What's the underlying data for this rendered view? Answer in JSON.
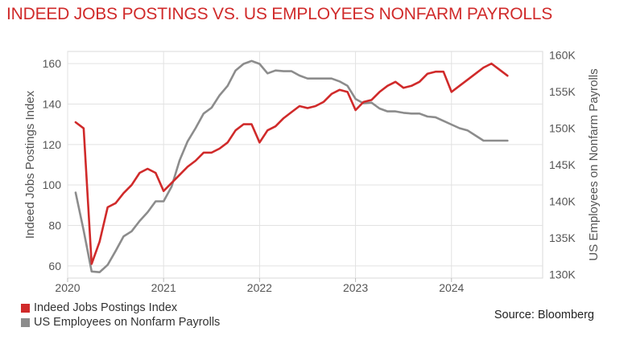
{
  "title": "INDEED JOBS POSTINGS VS. US EMPLOYEES NONFARM PAYROLLS",
  "source": "Source: Bloomberg",
  "chart_data": {
    "type": "line",
    "title": "INDEED JOBS POSTINGS VS. US EMPLOYEES NONFARM PAYROLLS",
    "xlabel": "",
    "ylabel_left": "Indeed Jobs Postings Index",
    "ylabel_right": "US Employees on Nonfarm Payrolls",
    "x_ticks": [
      "2020",
      "2021",
      "2022",
      "2023",
      "2024"
    ],
    "x_range": [
      2020.0,
      2024.95
    ],
    "y_left": {
      "range": [
        54,
        166
      ],
      "ticks": [
        60,
        80,
        100,
        120,
        140,
        160
      ]
    },
    "y_right": {
      "range": [
        129500,
        160500
      ],
      "ticks": [
        130000,
        135000,
        140000,
        145000,
        150000,
        155000,
        160000
      ],
      "tick_labels": [
        "130K",
        "135K",
        "140K",
        "145K",
        "150K",
        "155K",
        "160K"
      ]
    },
    "grid": true,
    "legend_position": "bottom-left",
    "series": [
      {
        "name": "Indeed Jobs Postings Index",
        "axis": "left",
        "color": "#d02a2a",
        "x": [
          "2020-02",
          "2020-03",
          "2020-04",
          "2020-05",
          "2020-06",
          "2020-07",
          "2020-08",
          "2020-09",
          "2020-10",
          "2020-11",
          "2020-12",
          "2021-01",
          "2021-02",
          "2021-03",
          "2021-04",
          "2021-05",
          "2021-06",
          "2021-07",
          "2021-08",
          "2021-09",
          "2021-10",
          "2021-11",
          "2021-12",
          "2022-01",
          "2022-02",
          "2022-03",
          "2022-04",
          "2022-05",
          "2022-06",
          "2022-07",
          "2022-08",
          "2022-09",
          "2022-10",
          "2022-11",
          "2022-12",
          "2023-01",
          "2023-02",
          "2023-03",
          "2023-04",
          "2023-05",
          "2023-06",
          "2023-07",
          "2023-08",
          "2023-09",
          "2023-10",
          "2023-11",
          "2023-12",
          "2024-01",
          "2024-02",
          "2024-03",
          "2024-04",
          "2024-05",
          "2024-06",
          "2024-07",
          "2024-08"
        ],
        "values": [
          131,
          128,
          61,
          72,
          89,
          91,
          96,
          100,
          106,
          108,
          106,
          97,
          101,
          105,
          109,
          112,
          116,
          116,
          118,
          121,
          127,
          130,
          130,
          121,
          127,
          129,
          133,
          136,
          139,
          138,
          139,
          141,
          145,
          147,
          146,
          137,
          141,
          142,
          146,
          149,
          151,
          148,
          149,
          151,
          155,
          156,
          156,
          146,
          149,
          152,
          155,
          158,
          160,
          157,
          154
        ]
      },
      {
        "name": "US Employees on Nonfarm Payrolls",
        "axis": "right",
        "color": "#8c8c8c",
        "x": [
          "2020-02",
          "2020-03",
          "2020-04",
          "2020-05",
          "2020-06",
          "2020-07",
          "2020-08",
          "2020-09",
          "2020-10",
          "2020-11",
          "2020-12",
          "2021-01",
          "2021-02",
          "2021-03",
          "2021-04",
          "2021-05",
          "2021-06",
          "2021-07",
          "2021-08",
          "2021-09",
          "2021-10",
          "2021-11",
          "2021-12",
          "2022-01",
          "2022-02",
          "2022-03",
          "2022-04",
          "2022-05",
          "2022-06",
          "2022-07",
          "2022-08",
          "2022-09",
          "2022-10",
          "2022-11",
          "2022-12",
          "2023-01",
          "2023-02",
          "2023-03",
          "2023-04",
          "2023-05",
          "2023-06",
          "2023-07",
          "2023-08",
          "2023-09",
          "2023-10",
          "2023-11",
          "2023-12",
          "2024-01",
          "2024-02",
          "2024-03",
          "2024-04",
          "2024-05",
          "2024-06",
          "2024-07",
          "2024-08"
        ],
        "values": [
          141200,
          136000,
          130400,
          130300,
          131300,
          133200,
          135200,
          135900,
          137300,
          138500,
          140000,
          140000,
          142000,
          145600,
          148200,
          150000,
          152000,
          152800,
          154500,
          155800,
          157900,
          158800,
          159200,
          158800,
          157500,
          157900,
          157800,
          157800,
          157200,
          156800,
          156800,
          156800,
          156800,
          156400,
          155800,
          154000,
          153400,
          153500,
          152700,
          152300,
          152300,
          152100,
          152000,
          152000,
          151600,
          151500,
          151000,
          150500,
          150000,
          149700,
          149000,
          148300,
          148300,
          148300,
          148300
        ]
      }
    ]
  },
  "legend": [
    {
      "label": "Indeed Jobs Postings Index",
      "color": "#d02a2a"
    },
    {
      "label": "US Employees on Nonfarm Payrolls",
      "color": "#8c8c8c"
    }
  ]
}
